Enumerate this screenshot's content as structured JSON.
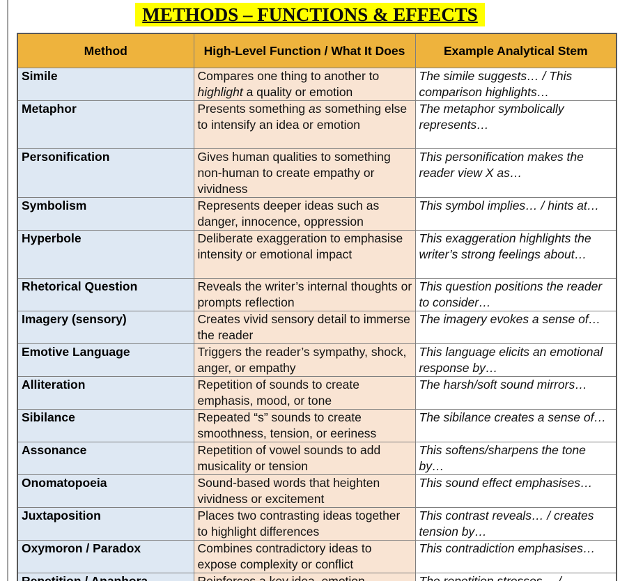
{
  "title": "METHODS – FUNCTIONS & EFFECTS",
  "colors": {
    "title_highlight": "#FFFF00",
    "header_bg": "#EEB33D",
    "method_col_bg": "#DEE8F3",
    "function_col_bg": "#F9E4D3",
    "stem_col_bg": "#FFFFFF",
    "border": "#7F7F7F"
  },
  "table": {
    "headers": [
      "Method",
      "High-Level Function / What It Does",
      "Example Analytical Stem"
    ],
    "rows": [
      {
        "method": "Simile",
        "function": [
          {
            "text": "Compares one thing to another to "
          },
          {
            "text": "highlight",
            "em": true
          },
          {
            "text": " a quality or emotion"
          }
        ],
        "stem": "The simile suggests… / This comparison highlights…"
      },
      {
        "method": "Metaphor",
        "function": [
          {
            "text": "Presents something "
          },
          {
            "text": "as",
            "em": true
          },
          {
            "text": " something else to intensify an idea or emotion"
          }
        ],
        "stem": "The metaphor symbolically represents…"
      },
      {
        "method": "Personification",
        "function": [
          {
            "text": "Gives human qualities to something non-human to create empathy or vividness"
          }
        ],
        "stem": "This personification makes the reader view X as…"
      },
      {
        "method": "Symbolism",
        "function": [
          {
            "text": "Represents deeper ideas such as danger, innocence, oppression"
          }
        ],
        "stem": "This symbol implies… / hints at…"
      },
      {
        "method": "Hyperbole",
        "function": [
          {
            "text": "Deliberate exaggeration to emphasise intensity or emotional impact"
          }
        ],
        "stem": "This exaggeration highlights the writer’s strong feelings about…"
      },
      {
        "method": "Rhetorical Question",
        "function": [
          {
            "text": "Reveals the writer’s internal thoughts or prompts reflection"
          }
        ],
        "stem": "This question positions the reader to consider…"
      },
      {
        "method": "Imagery (sensory)",
        "function": [
          {
            "text": "Creates vivid sensory detail to immerse the reader"
          }
        ],
        "stem": "The imagery evokes a sense of…"
      },
      {
        "method": "Emotive Language",
        "function": [
          {
            "text": "Triggers the reader’s sympathy, shock, anger, or empathy"
          }
        ],
        "stem": "This language elicits an emotional response by…"
      },
      {
        "method": "Alliteration",
        "function": [
          {
            "text": "Repetition of sounds to create emphasis, mood, or tone"
          }
        ],
        "stem": "The harsh/soft sound mirrors…"
      },
      {
        "method": "Sibilance",
        "function": [
          {
            "text": "Repeated “s” sounds to create smoothness, tension, or eeriness"
          }
        ],
        "stem": "The sibilance creates a sense of…"
      },
      {
        "method": "Assonance",
        "function": [
          {
            "text": "Repetition of vowel sounds to add musicality or tension"
          }
        ],
        "stem": "This softens/sharpens the tone by…"
      },
      {
        "method": "Onomatopoeia",
        "function": [
          {
            "text": "Sound-based words that heighten vividness or excitement"
          }
        ],
        "stem": "This sound effect emphasises…"
      },
      {
        "method": "Juxtaposition",
        "function": [
          {
            "text": "Places two contrasting ideas together to highlight differences"
          }
        ],
        "stem": "This contrast reveals… / creates tension by…"
      },
      {
        "method": "Oxymoron / Paradox",
        "function": [
          {
            "text": "Combines contradictory ideas to expose complexity or conflict"
          }
        ],
        "stem": "This contradiction emphasises…"
      },
      {
        "method": "Repetition / Anaphora",
        "function": [
          {
            "text": "Reinforces a key idea, emotion,"
          }
        ],
        "stem": "The repetition stresses… /"
      }
    ]
  }
}
